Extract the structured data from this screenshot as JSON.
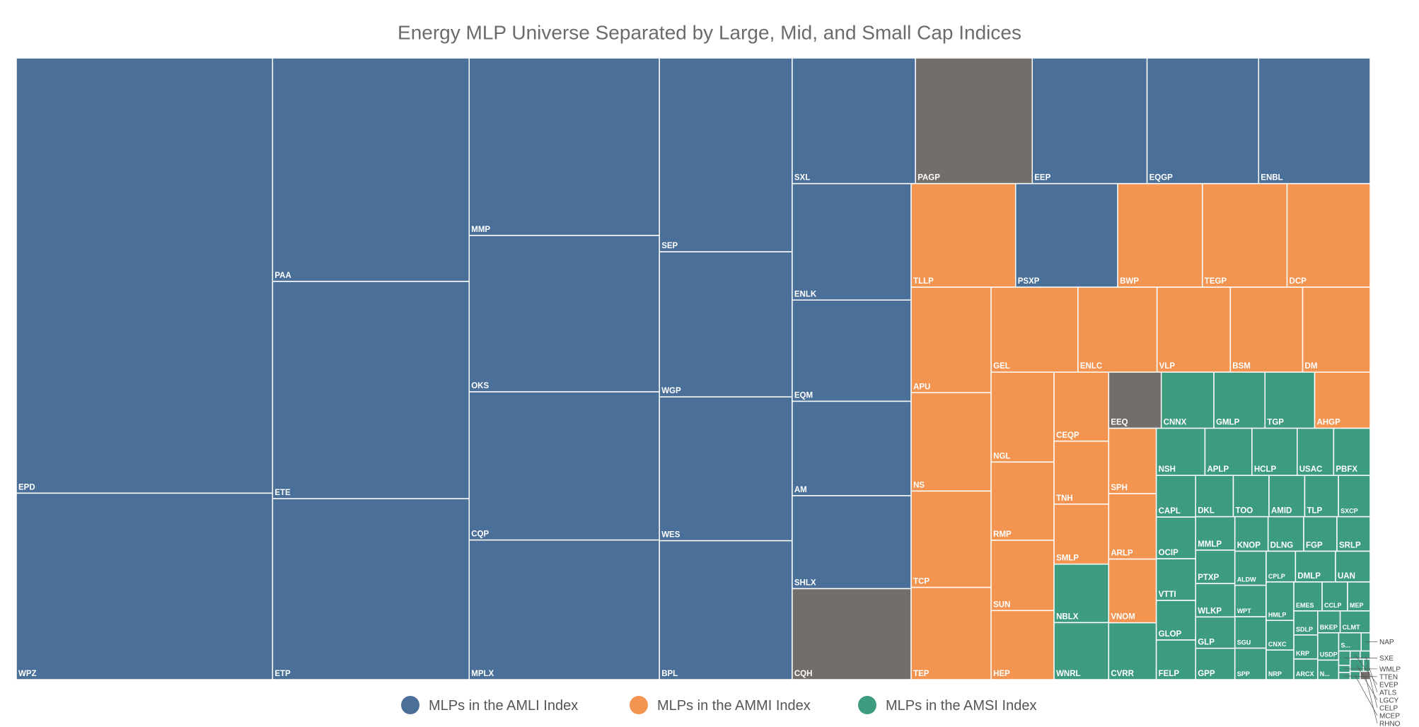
{
  "chart_data": {
    "type": "treemap",
    "title": "Energy MLP Universe Separated by Large, Mid, and Small Cap Indices",
    "legend": [
      {
        "name": "MLPs in the AMLI Index",
        "color": "#4a6f98"
      },
      {
        "name": "MLPs in the AMMI Index",
        "color": "#f39450"
      },
      {
        "name": "MLPs in the AMSI Index",
        "color": "#3d9b80"
      }
    ],
    "labels": [
      "EPD",
      "WPZ",
      "PAA",
      "ETE",
      "ETP",
      "MMP",
      "OKS",
      "CQP",
      "MPLX",
      "SEP",
      "WGP",
      "WES",
      "BPL",
      "SXL",
      "PAGP",
      "EEP",
      "EQGP",
      "ENBL",
      "ENLK",
      "EQM",
      "AM",
      "SHLX",
      "CQH",
      "TLLP",
      "PSXP",
      "BWP",
      "TEGP",
      "DCP",
      "APU",
      "NS",
      "TCP",
      "TEP",
      "GEL",
      "ENLC",
      "VLP",
      "BSM",
      "DM",
      "NGL",
      "RMP",
      "SUN",
      "HEP",
      "CEQP",
      "TNH",
      "SMLP",
      "NBLX",
      "WNRL",
      "EEQ",
      "CNNX",
      "GMLP",
      "TGP",
      "AHGP",
      "SPH",
      "ARLP",
      "VNOM",
      "CVRR",
      "NSH",
      "APLP",
      "HCLP",
      "USAC",
      "PBFX",
      "CAPL",
      "OCIP",
      "VTTI",
      "GLOP",
      "FELP",
      "DKL",
      "TOO",
      "AMID",
      "TLP",
      "SXCP",
      "MMLP",
      "PTXP",
      "WLKP",
      "GLP",
      "GPP",
      "KNOP",
      "DLNG",
      "FGP",
      "SRLP",
      "ALDW",
      "WPT",
      "SGU",
      "SPP",
      "CPLP",
      "DMLP",
      "UAN",
      "HMLP",
      "CNXC",
      "NRP",
      "EMES",
      "CCLP",
      "MEP",
      "SDLP",
      "KRP",
      "ARCX",
      "BKEP",
      "CLMT",
      "USDP",
      "N...",
      "S...",
      "NAP",
      "SXE",
      "WMLP",
      "TTEN",
      "EVEP",
      "ATLS",
      "LGCY",
      "CELP",
      "MCEP",
      "RHNO"
    ],
    "values": [
      1361,
      583,
      536,
      521,
      434,
      412,
      363,
      344,
      324,
      314,
      235,
      233,
      225,
      189,
      179,
      176,
      171,
      171,
      169,
      147,
      137,
      135,
      132,
      132,
      129,
      107,
      107,
      105,
      103,
      96,
      94,
      90,
      90,
      82,
      76,
      75,
      70,
      69,
      60,
      54,
      53,
      46,
      42,
      40,
      39,
      38,
      36,
      36,
      35,
      34,
      38,
      38,
      38,
      37,
      33,
      28,
      27,
      26,
      21,
      21,
      20,
      20,
      20,
      19,
      19,
      19,
      18,
      18,
      17,
      16,
      16,
      16,
      16,
      15,
      15,
      14,
      15,
      14,
      14,
      13,
      12,
      12,
      12,
      11,
      15,
      13,
      13,
      10,
      10,
      10,
      9,
      8,
      7,
      7,
      6,
      6,
      8,
      7,
      5,
      5,
      2,
      2,
      1,
      1,
      1,
      1,
      2,
      1,
      1,
      1
    ],
    "colors": [
      "#4a6f98",
      "#4a6f98",
      "#4a6f98",
      "#4a6f98",
      "#4a6f98",
      "#4a6f98",
      "#4a6f98",
      "#4a6f98",
      "#4a6f98",
      "#4a6f98",
      "#4a6f98",
      "#4a6f98",
      "#4a6f98",
      "#4a6f98",
      "#736e6b",
      "#4a6f98",
      "#4a6f98",
      "#4a6f98",
      "#4a6f98",
      "#4a6f98",
      "#4a6f98",
      "#4a6f98",
      "#736e6b",
      "#f39450",
      "#4a6f98",
      "#f39450",
      "#f39450",
      "#f39450",
      "#f39450",
      "#f39450",
      "#f39450",
      "#f39450",
      "#f39450",
      "#f39450",
      "#f39450",
      "#f39450",
      "#f39450",
      "#f39450",
      "#f39450",
      "#f39450",
      "#f39450",
      "#f39450",
      "#f39450",
      "#f39450",
      "#3d9b80",
      "#3d9b80",
      "#736e6b",
      "#3d9b80",
      "#3d9b80",
      "#3d9b80",
      "#f39450",
      "#f39450",
      "#f39450",
      "#f39450",
      "#3d9b80",
      "#3d9b80",
      "#3d9b80",
      "#3d9b80",
      "#3d9b80",
      "#3d9b80",
      "#3d9b80",
      "#3d9b80",
      "#3d9b80",
      "#3d9b80",
      "#3d9b80",
      "#3d9b80",
      "#3d9b80",
      "#3d9b80",
      "#3d9b80",
      "#3d9b80",
      "#3d9b80",
      "#3d9b80",
      "#3d9b80",
      "#3d9b80",
      "#3d9b80",
      "#3d9b80",
      "#3d9b80",
      "#3d9b80",
      "#3d9b80",
      "#3d9b80",
      "#3d9b80",
      "#3d9b80",
      "#3d9b80",
      "#3d9b80",
      "#3d9b80",
      "#3d9b80",
      "#3d9b80",
      "#3d9b80",
      "#3d9b80",
      "#3d9b80",
      "#3d9b80",
      "#3d9b80",
      "#3d9b80",
      "#3d9b80",
      "#3d9b80",
      "#3d9b80",
      "#3d9b80",
      "#3d9b80",
      "#3d9b80",
      "#3d9b80",
      "#3d9b80",
      "#3d9b80",
      "#3d9b80",
      "#3d9b80",
      "#3d9b80",
      "#3d9b80",
      "#3d9b80",
      "#3d9b80",
      "#3d9b80",
      "#736e6b"
    ]
  }
}
